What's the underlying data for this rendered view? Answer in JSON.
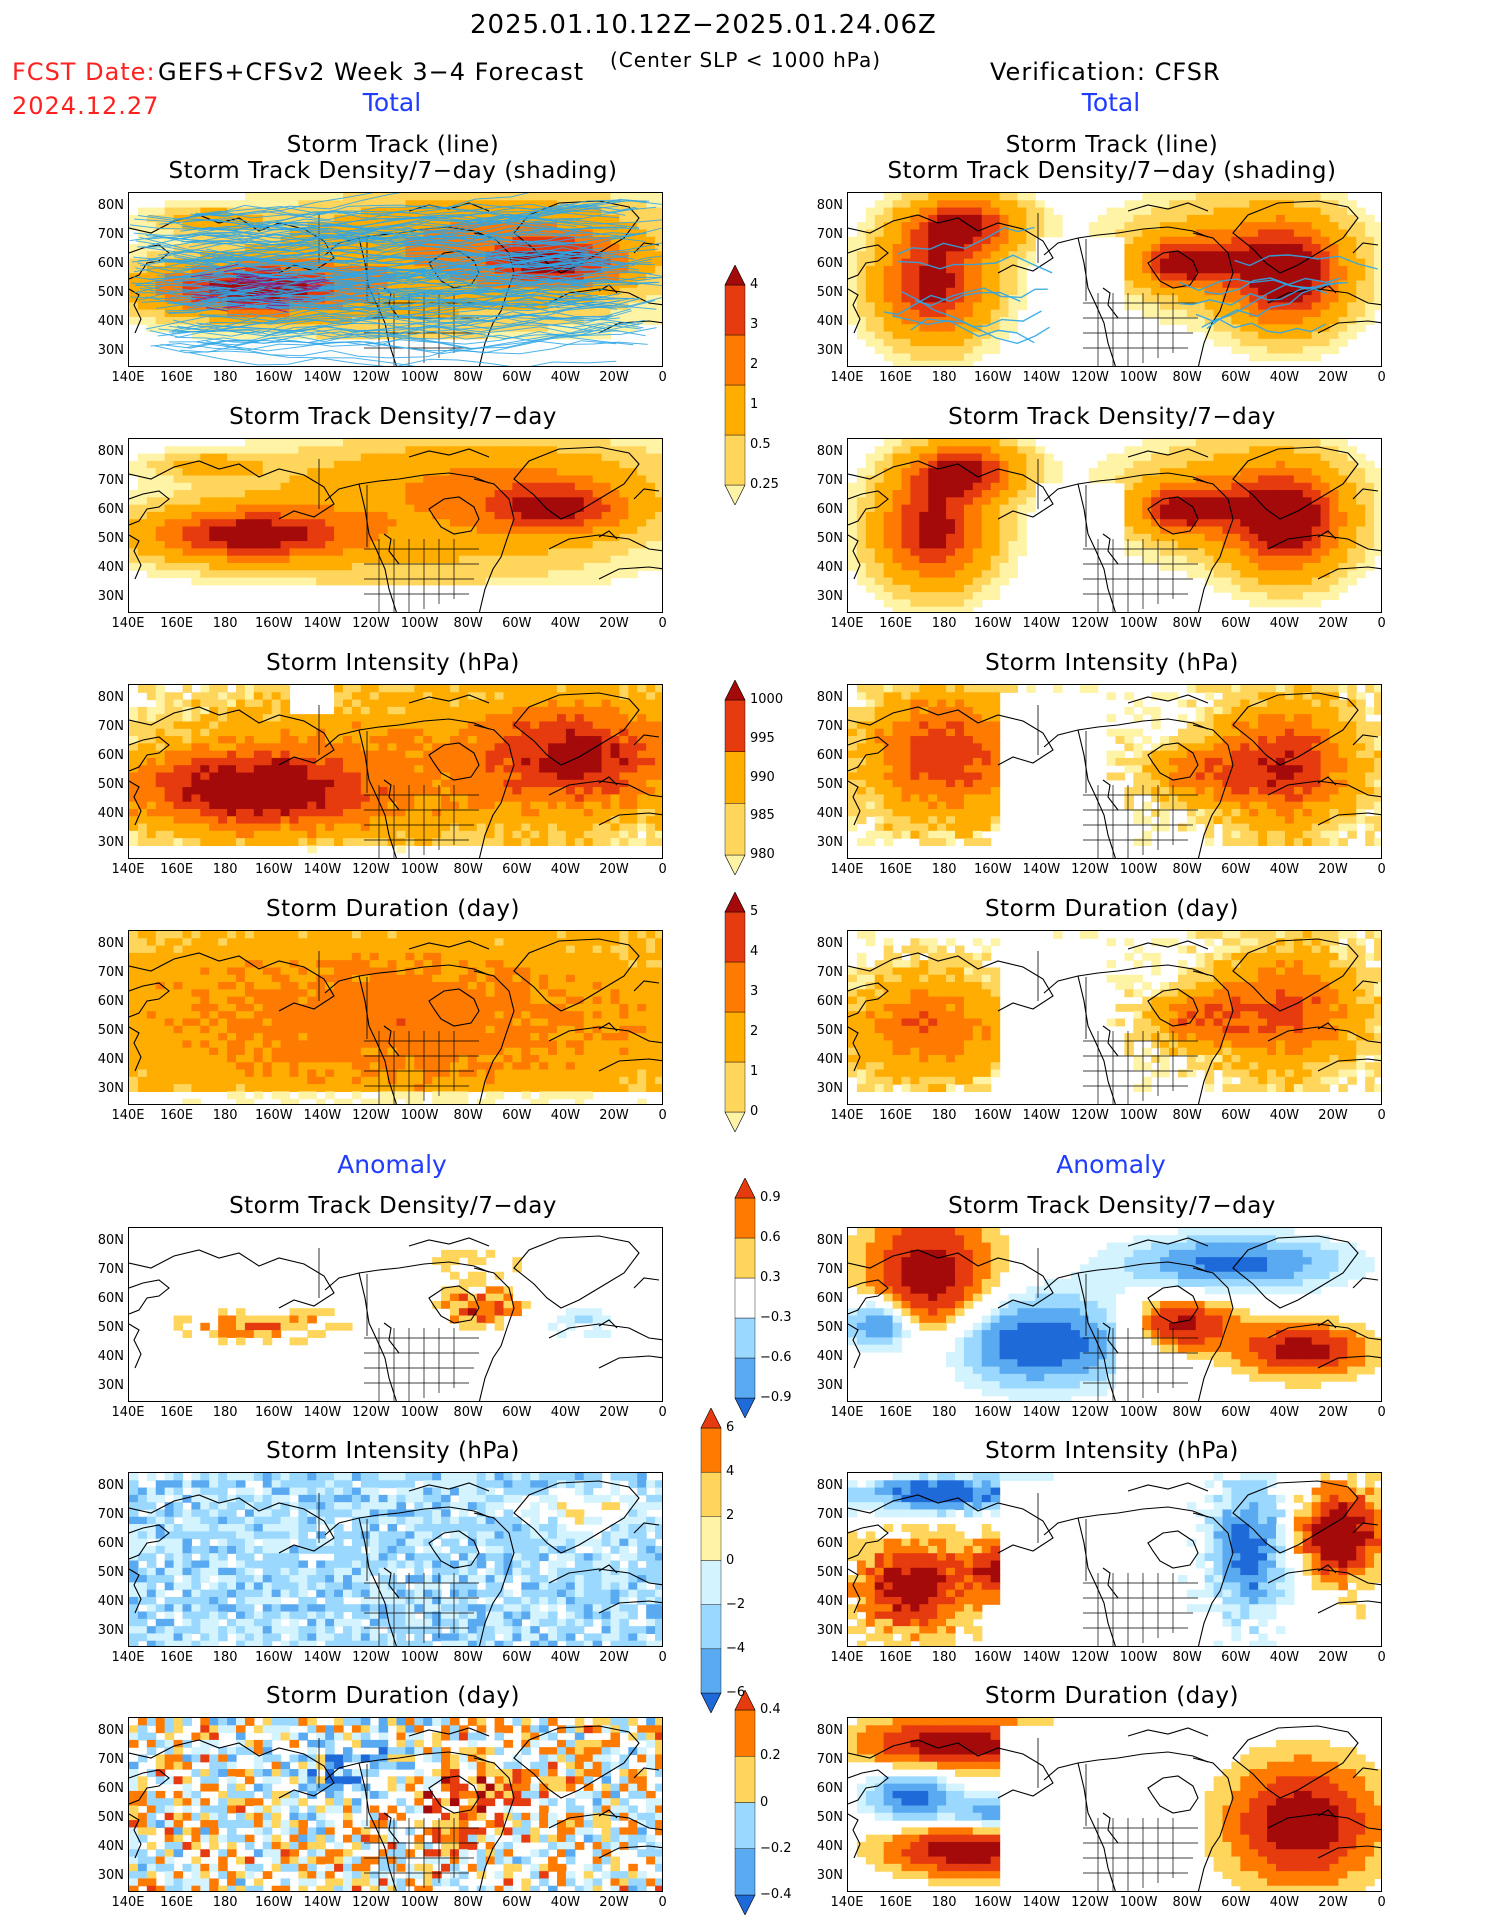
{
  "header": {
    "date_range": "2025.01.10.12Z−2025.01.24.06Z",
    "fcst_label": "FCST Date:",
    "fcst_date": "2024.12.27",
    "model": "GEFS+CFSv2 Week 3−4 Forecast",
    "criterion": "(Center SLP < 1000 hPa)",
    "verification": "Verification: CFSR"
  },
  "sections": {
    "total_left": "Total",
    "total_right": "Total",
    "anomaly_left": "Anomaly",
    "anomaly_right": "Anomaly"
  },
  "panel_titles": {
    "track_line": "Storm Track (line)",
    "track_shading": "Storm Track Density/7−day (shading)",
    "density": "Storm Track Density/7−day",
    "intensity": "Storm Intensity (hPa)",
    "duration": "Storm Duration (day)"
  },
  "axes": {
    "lat_labels": [
      "80N",
      "70N",
      "60N",
      "50N",
      "40N",
      "30N"
    ],
    "lon_labels": [
      "140E",
      "160E",
      "180",
      "160W",
      "140W",
      "120W",
      "100W",
      "80W",
      "60W",
      "40W",
      "20W",
      "0"
    ]
  },
  "colorbars": {
    "density_total": [
      "4",
      "3",
      "2",
      "1",
      "0.5",
      "0.25"
    ],
    "intensity_total": [
      "1000",
      "995",
      "990",
      "985",
      "980"
    ],
    "duration_total": [
      "5",
      "4",
      "3",
      "2",
      "1",
      "0"
    ],
    "density_anom": [
      "0.9",
      "0.6",
      "0.3",
      "−0.3",
      "−0.6",
      "−0.9"
    ],
    "intensity_anom": [
      "6",
      "4",
      "2",
      "0",
      "−2",
      "−4",
      "−6"
    ],
    "duration_anom": [
      "0.4",
      "0.2",
      "0",
      "−0.2",
      "−0.4"
    ]
  },
  "colors": {
    "warm": [
      "#fff3a6",
      "#ffd55c",
      "#ffad00",
      "#ff7a00",
      "#e63a0f",
      "#a50a0a"
    ],
    "cool": [
      "#d2f3ff",
      "#9ad8ff",
      "#5aaaf2",
      "#1e6ad8"
    ],
    "track_line": "#2ea6e6",
    "title_red": "#ff2020",
    "section_blue": "#1f3cff"
  }
}
